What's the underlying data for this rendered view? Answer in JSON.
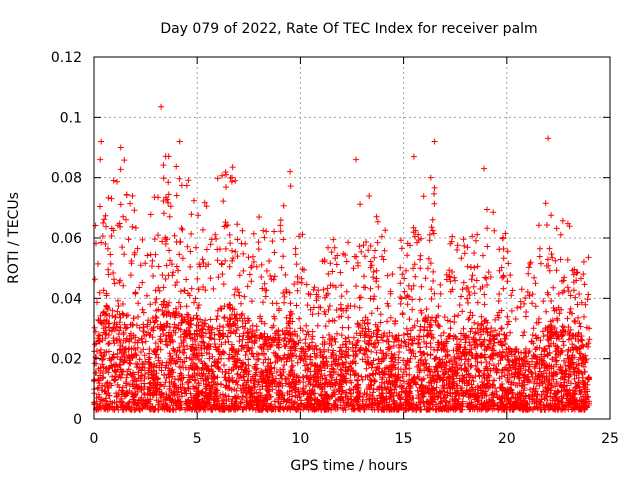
{
  "chart_data": {
    "type": "scatter",
    "title": "Day 079 of 2022, Rate Of TEC Index for receiver palm",
    "xlabel": "GPS time / hours",
    "ylabel": "ROTI / TECUs",
    "xlim": [
      0,
      25
    ],
    "ylim": [
      0,
      0.12
    ],
    "x_ticks": [
      0,
      5,
      10,
      15,
      20,
      25
    ],
    "x_tick_labels": [
      "0",
      "5",
      "10",
      "15",
      "20",
      "25"
    ],
    "y_ticks": [
      0,
      0.02,
      0.04,
      0.06,
      0.08,
      0.1,
      0.12
    ],
    "y_tick_labels": [
      "0",
      "0.02",
      "0.04",
      "0.06",
      "0.08",
      "0.1",
      "0.12"
    ],
    "grid": true,
    "marker": "plus",
    "color": "#ff0000",
    "x_range_of_data": [
      0,
      24
    ],
    "notable_points": [
      {
        "x": 0.35,
        "y": 0.092
      },
      {
        "x": 0.3,
        "y": 0.086
      },
      {
        "x": 1.3,
        "y": 0.09
      },
      {
        "x": 3.25,
        "y": 0.1035
      },
      {
        "x": 4.15,
        "y": 0.092
      },
      {
        "x": 6.4,
        "y": 0.081
      },
      {
        "x": 9.5,
        "y": 0.082
      },
      {
        "x": 12.7,
        "y": 0.086
      },
      {
        "x": 15.5,
        "y": 0.087
      },
      {
        "x": 16.5,
        "y": 0.092
      },
      {
        "x": 18.9,
        "y": 0.083
      },
      {
        "x": 22.0,
        "y": 0.093
      }
    ],
    "envelope": {
      "x": [
        0,
        0.5,
        1,
        1.5,
        2,
        2.5,
        3,
        3.5,
        4,
        4.5,
        5,
        5.5,
        6,
        6.5,
        7,
        7.5,
        8,
        8.5,
        9,
        9.5,
        10,
        10.5,
        11,
        11.5,
        12,
        12.5,
        13,
        13.5,
        14,
        14.5,
        15,
        15.5,
        16,
        16.5,
        17,
        17.5,
        18,
        18.5,
        19,
        19.5,
        20,
        20.5,
        21,
        21.5,
        22,
        22.5,
        23,
        23.5,
        24
      ],
      "y_typical_max": [
        0.045,
        0.065,
        0.06,
        0.065,
        0.055,
        0.05,
        0.06,
        0.07,
        0.065,
        0.06,
        0.055,
        0.055,
        0.06,
        0.065,
        0.06,
        0.055,
        0.05,
        0.045,
        0.05,
        0.06,
        0.05,
        0.04,
        0.04,
        0.045,
        0.04,
        0.05,
        0.055,
        0.055,
        0.05,
        0.045,
        0.05,
        0.06,
        0.06,
        0.06,
        0.045,
        0.045,
        0.05,
        0.05,
        0.055,
        0.05,
        0.045,
        0.035,
        0.04,
        0.05,
        0.055,
        0.05,
        0.05,
        0.045,
        0.04
      ],
      "y_min": 0.003
    }
  }
}
